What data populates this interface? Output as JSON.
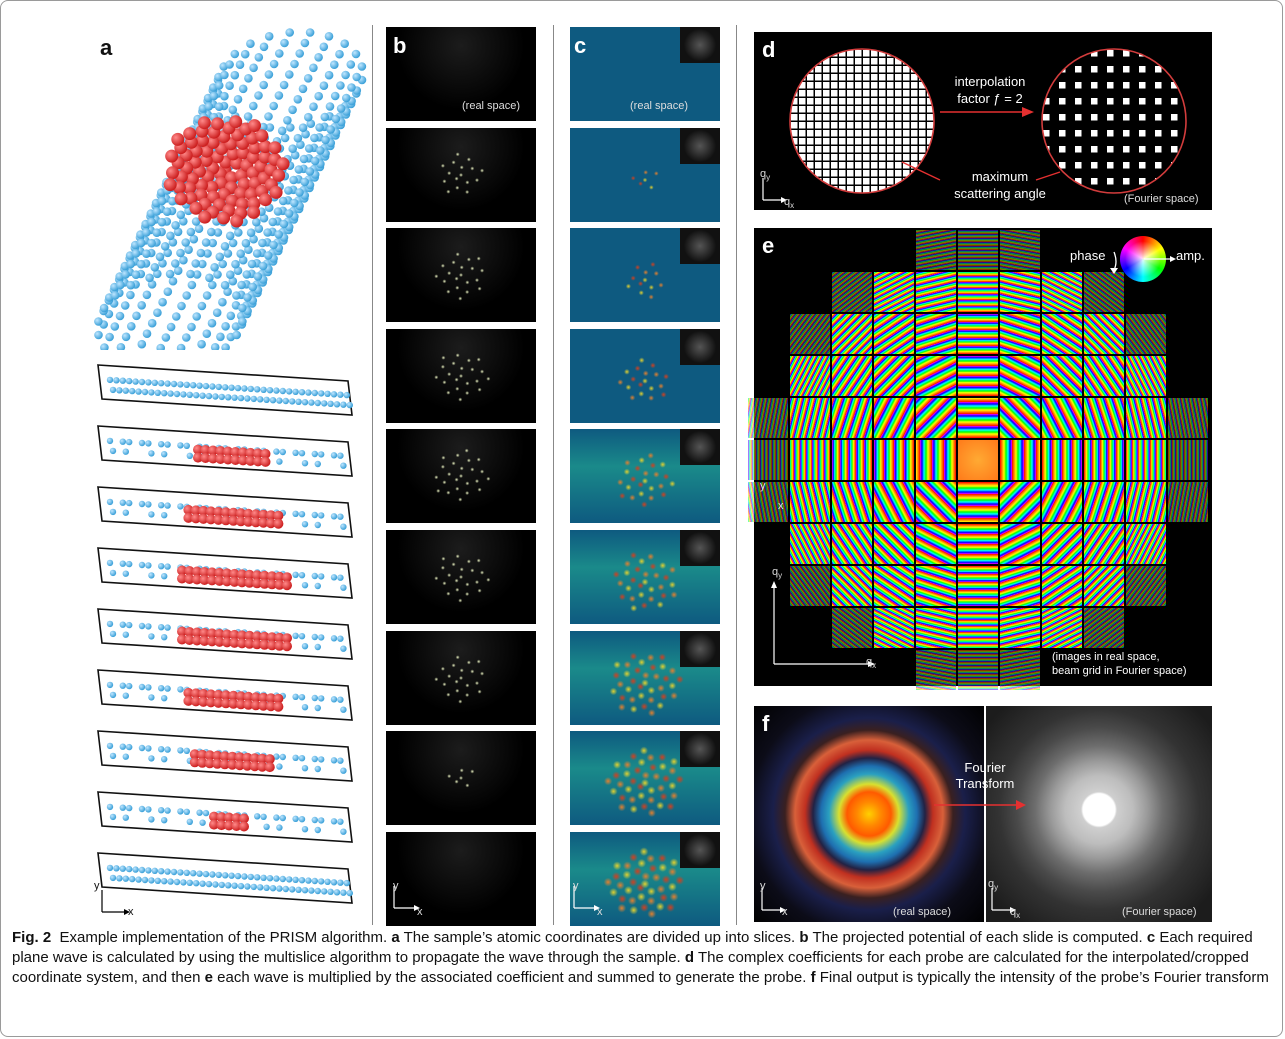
{
  "panels": {
    "a": {
      "letter": "a"
    },
    "b": {
      "letter": "b",
      "space_label": "(real space)"
    },
    "c": {
      "letter": "c",
      "space_label": "(real space)"
    },
    "d": {
      "letter": "d",
      "interp_line1": "interpolation",
      "interp_line2": "factor ƒ = 2",
      "max_line1": "maximum",
      "max_line2": "scattering angle",
      "space_label": "(Fourier space)"
    },
    "e": {
      "letter": "e",
      "phase_label": "phase",
      "amp_label": "amp.",
      "note_line1": "(images in real space,",
      "note_line2": "beam grid in Fourier space)"
    },
    "f": {
      "letter": "f",
      "ft_line1": "Fourier",
      "ft_line2": "Transform",
      "real_label": "(real space)",
      "fourier_label": "(Fourier space)"
    }
  },
  "axes": {
    "x": "x",
    "y": "y",
    "qx": "q",
    "qy": "q",
    "sub_x": "x",
    "sub_y": "y"
  },
  "caption": {
    "fig_label": "Fig. 2",
    "intro": "Example implementation of the PRISM algorithm.",
    "parts": [
      {
        "letter": "a",
        "text": "The sample’s atomic coordinates are divided up into slices."
      },
      {
        "letter": "b",
        "text": "The projected potential of each slide is computed."
      },
      {
        "letter": "c",
        "text": "Each required plane wave is calculated by using the multislice algorithm to propagate the wave through the sample."
      },
      {
        "letter": "d",
        "text": "The complex coefficients for each probe are calculated for the interpolated/cropped coordinate system, and then"
      },
      {
        "letter": "e",
        "text": "each wave is multiplied by the associated coefficient and summed to generate the probe."
      },
      {
        "letter": "f",
        "text": "Final output is typically the intensity of the probe’s Fourier transform"
      }
    ]
  },
  "colors": {
    "atom_blue": "#3aa0d8",
    "atom_red": "#cc1f1f",
    "teal": "#0e5a80",
    "circle_red": "#d23c3c"
  }
}
